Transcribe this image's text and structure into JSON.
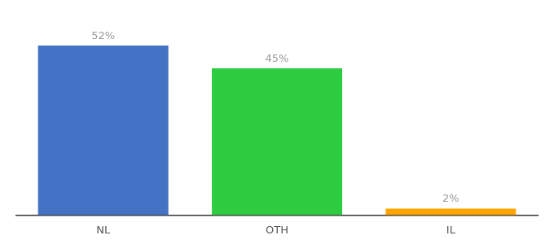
{
  "chart_data": {
    "type": "bar",
    "categories": [
      "NL",
      "OTH",
      "IL"
    ],
    "values": [
      52,
      45,
      2
    ],
    "value_labels": [
      "52%",
      "45%",
      "2%"
    ],
    "colors": [
      "#4472C4",
      "#2ECC40",
      "#FFA500"
    ],
    "ylim": [
      0,
      60
    ],
    "grid": false,
    "legend": false,
    "data_labels": true,
    "tick_labels": "x"
  }
}
